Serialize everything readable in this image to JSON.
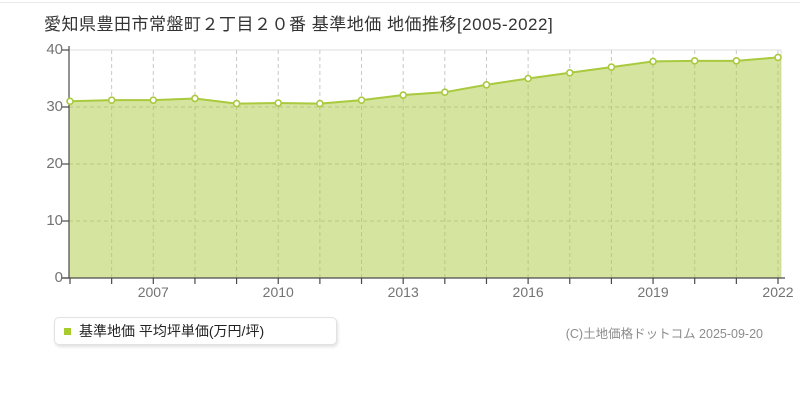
{
  "title": "愛知県豊田市常盤町２丁目２０番 基準地価 地価推移[2005-2022]",
  "legend": {
    "label": "基準地価 平均坪単価(万円/坪)",
    "marker_color": "#a8cc2e"
  },
  "footer": {
    "copyright": "(C)土地価格ドットコム 2025-09-20"
  },
  "chart_data": {
    "type": "area",
    "title": "愛知県豊田市常盤町２丁目２０番 基準地価 地価推移[2005-2022]",
    "x": [
      2005,
      2006,
      2007,
      2008,
      2009,
      2010,
      2011,
      2012,
      2013,
      2014,
      2015,
      2016,
      2017,
      2018,
      2019,
      2020,
      2021,
      2022
    ],
    "series": [
      {
        "name": "基準地価 平均坪単価(万円/坪)",
        "values": [
          31.0,
          31.2,
          31.2,
          31.5,
          30.6,
          30.7,
          30.6,
          31.2,
          32.1,
          32.6,
          33.9,
          35.0,
          36.0,
          37.0,
          38.0,
          38.1,
          38.1,
          38.7
        ]
      }
    ],
    "xlabel": "",
    "ylabel": "",
    "unit": "万円/坪",
    "ylim": [
      0,
      40
    ],
    "yticks": [
      0,
      10,
      20,
      30,
      40
    ],
    "xtick_labels": [
      2007,
      2010,
      2013,
      2016,
      2019,
      2022
    ],
    "grid": true,
    "legend_position": "bottom-left",
    "colors": {
      "line": "#a9c93e",
      "fill_rgba": "rgba(171,201,61,0.5)",
      "point_fill": "#ffffff",
      "grid": "#c8c8c8",
      "plot_border": "#dcdcdc",
      "axis": "#4a4a4a",
      "tick_text": "#737373",
      "title_text": "#333333"
    }
  }
}
